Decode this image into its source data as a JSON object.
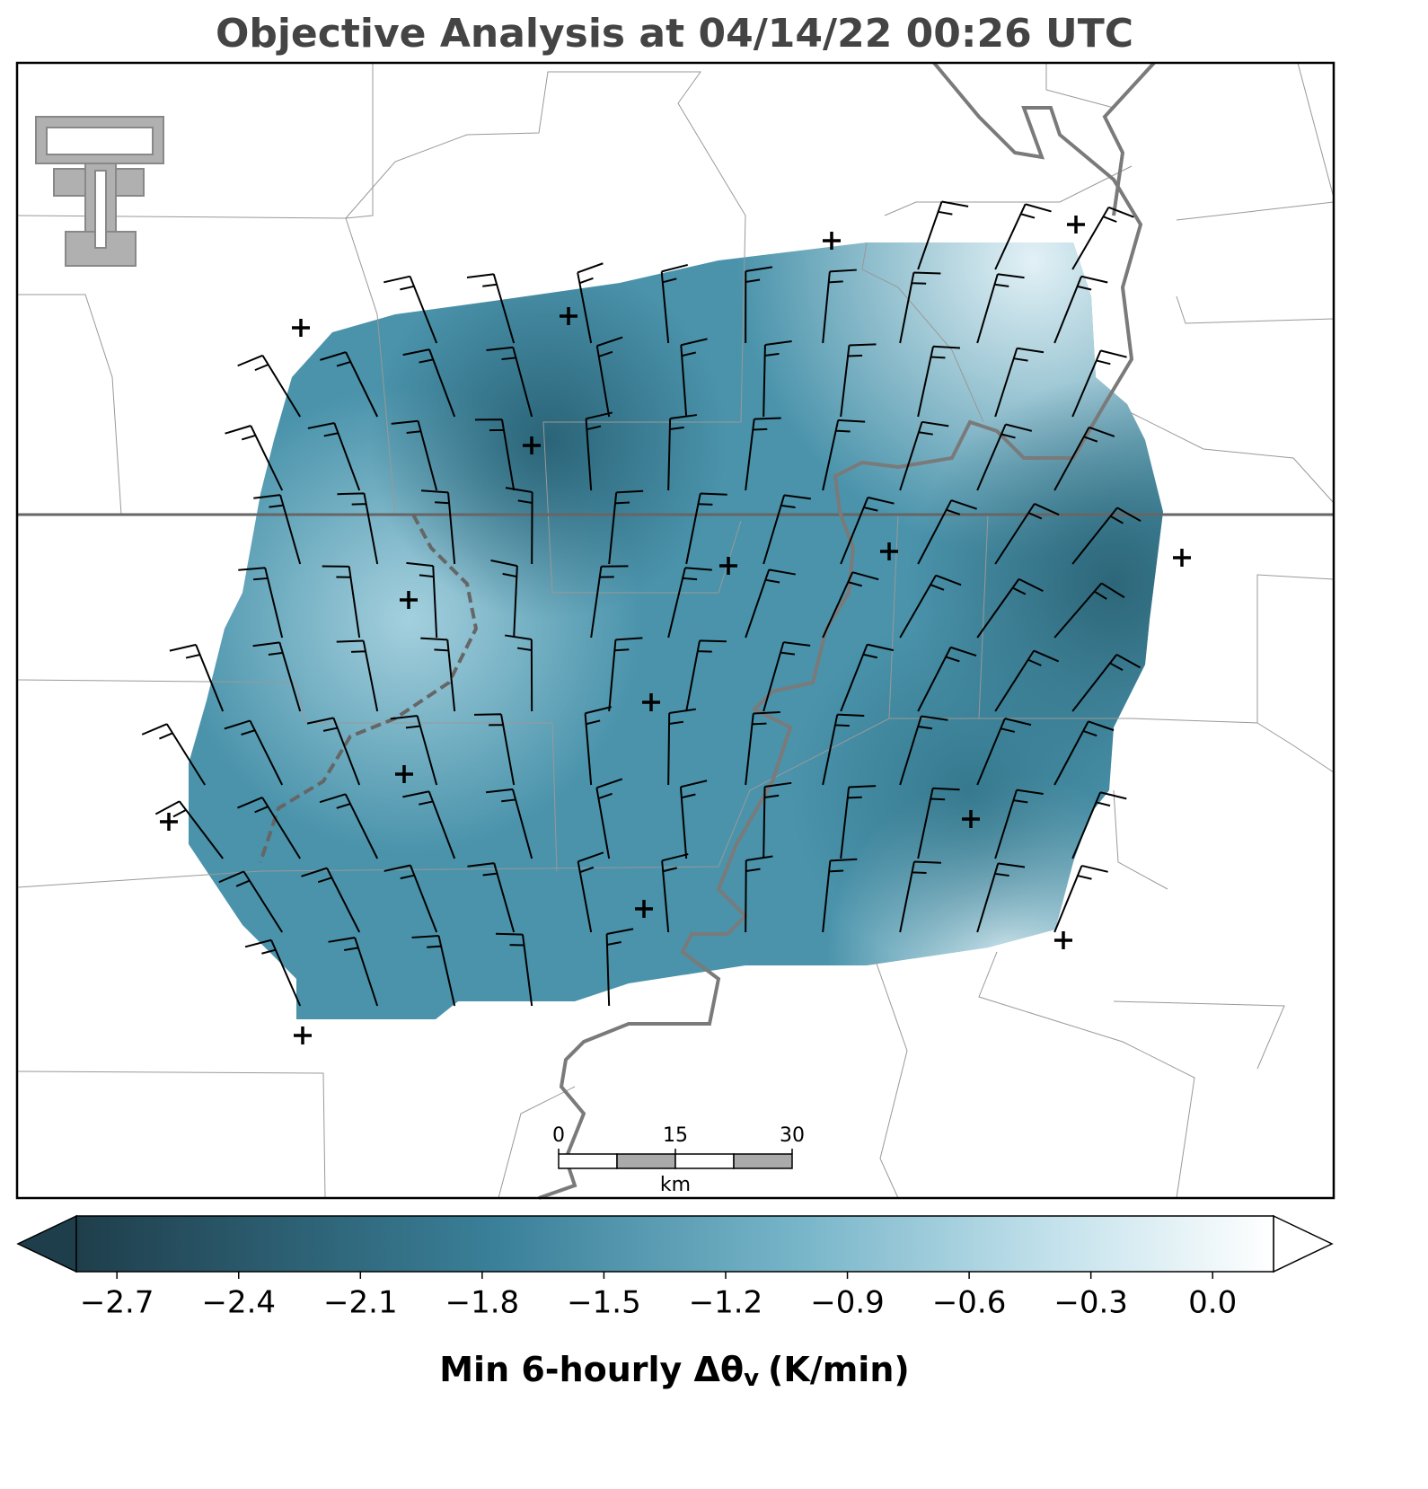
{
  "title": "Objective Analysis at 04/14/22 00:26 UTC",
  "scale_bar": {
    "ticks": [
      0,
      15,
      30
    ],
    "unit": "km"
  },
  "colorbar": {
    "range": [
      -2.8,
      0.15
    ],
    "ticks": [
      {
        "value": -2.7,
        "label": "−2.7"
      },
      {
        "value": -2.4,
        "label": "−2.4"
      },
      {
        "value": -2.1,
        "label": "−2.1"
      },
      {
        "value": -1.8,
        "label": "−1.8"
      },
      {
        "value": -1.5,
        "label": "−1.5"
      },
      {
        "value": -1.2,
        "label": "−1.2"
      },
      {
        "value": -0.9,
        "label": "−0.9"
      },
      {
        "value": -0.6,
        "label": "−0.6"
      },
      {
        "value": -0.3,
        "label": "−0.3"
      },
      {
        "value": 0.0,
        "label": "0.0"
      }
    ],
    "label": "Min 6-hourly Δθ",
    "label_subscript": "v",
    "label_unit": "(K/min)"
  }
}
